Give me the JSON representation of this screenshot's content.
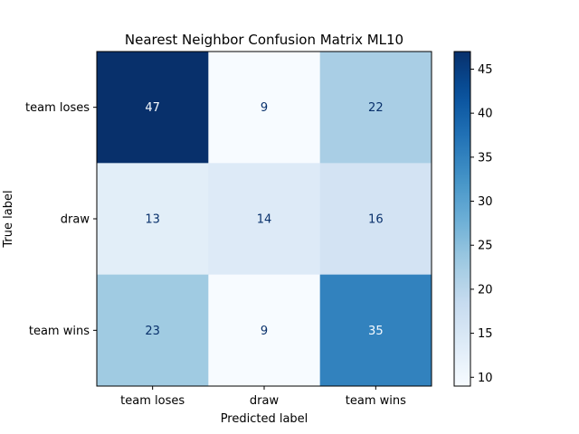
{
  "chart_data": {
    "type": "heatmap",
    "title": "Nearest Neighbor Confusion Matrix ML10",
    "xlabel": "Predicted label",
    "ylabel": "True label",
    "x_categories": [
      "team loses",
      "draw",
      "team wins"
    ],
    "y_categories": [
      "team loses",
      "draw",
      "team wins"
    ],
    "values": [
      [
        47,
        9,
        22
      ],
      [
        13,
        14,
        16
      ],
      [
        23,
        9,
        35
      ]
    ],
    "colormap": "Blues",
    "colorbar": {
      "min": 9,
      "max": 47,
      "ticks": [
        10,
        15,
        20,
        25,
        30,
        35,
        40,
        45
      ]
    },
    "grid": false
  }
}
